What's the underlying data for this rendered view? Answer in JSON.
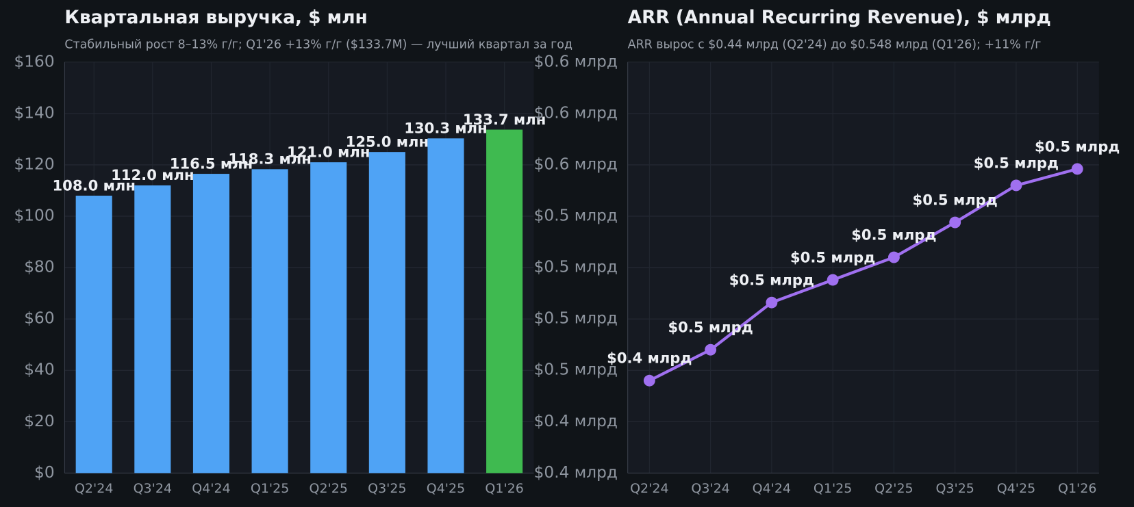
{
  "chart_data": [
    {
      "type": "bar",
      "title": "Квартальная выручка, $ млн",
      "subtitle": "Стабильный рост 8–13% г/г; Q1'26 +13% г/г ($133.7M) — лучший квартал за год",
      "categories": [
        "Q2'24",
        "Q3'24",
        "Q4'24",
        "Q1'25",
        "Q2'25",
        "Q3'25",
        "Q4'25",
        "Q1'26"
      ],
      "values": [
        108.0,
        112.0,
        116.5,
        118.3,
        121.0,
        125.0,
        130.3,
        133.7
      ],
      "value_labels": [
        "108.0 млн",
        "112.0 млн",
        "116.5 млн",
        "118.3 млн",
        "121.0 млн",
        "125.0 млн",
        "130.3 млн",
        "133.7 млн"
      ],
      "colors": [
        "#4fa3f5",
        "#4fa3f5",
        "#4fa3f5",
        "#4fa3f5",
        "#4fa3f5",
        "#4fa3f5",
        "#4fa3f5",
        "#3fba50"
      ],
      "ylim": [
        0,
        160
      ],
      "yticks": [
        {
          "value": 0,
          "label": "$0"
        },
        {
          "value": 20,
          "label": "$20"
        },
        {
          "value": 40,
          "label": "$40"
        },
        {
          "value": 60,
          "label": "$60"
        },
        {
          "value": 80,
          "label": "$80"
        },
        {
          "value": 100,
          "label": "$100"
        },
        {
          "value": 120,
          "label": "$120"
        },
        {
          "value": 140,
          "label": "$140"
        },
        {
          "value": 160,
          "label": "$160"
        }
      ],
      "grid": true
    },
    {
      "type": "line",
      "title": "ARR (Annual Recurring Revenue), $ млрд",
      "subtitle": "ARR вырос с $0.44 млрд (Q2'24) до $0.548 млрд (Q1'26); +11% г/г",
      "categories": [
        "Q2'24",
        "Q3'24",
        "Q4'24",
        "Q1'25",
        "Q2'25",
        "Q3'25",
        "Q4'25",
        "Q1'26"
      ],
      "values": [
        0.445,
        0.46,
        0.483,
        0.494,
        0.505,
        0.522,
        0.54,
        0.548
      ],
      "value_labels": [
        "$0.4 млрд",
        "$0.5 млрд",
        "$0.5 млрд",
        "$0.5 млрд",
        "$0.5 млрд",
        "$0.5 млрд",
        "$0.5 млрд",
        "$0.5 млрд"
      ],
      "color": "#a070f0",
      "ylim": [
        0.4,
        0.6
      ],
      "yticks": [
        {
          "value": 0.4,
          "label": "$0.4 млрд"
        },
        {
          "value": 0.425,
          "label": "$0.4 млрд"
        },
        {
          "value": 0.45,
          "label": "$0.5 млрд"
        },
        {
          "value": 0.475,
          "label": "$0.5 млрд"
        },
        {
          "value": 0.5,
          "label": "$0.5 млрд"
        },
        {
          "value": 0.525,
          "label": "$0.5 млрд"
        },
        {
          "value": 0.55,
          "label": "$0.6 млрд"
        },
        {
          "value": 0.575,
          "label": "$0.6 млрд"
        },
        {
          "value": 0.6,
          "label": "$0.6 млрд"
        }
      ],
      "grid": true
    }
  ]
}
